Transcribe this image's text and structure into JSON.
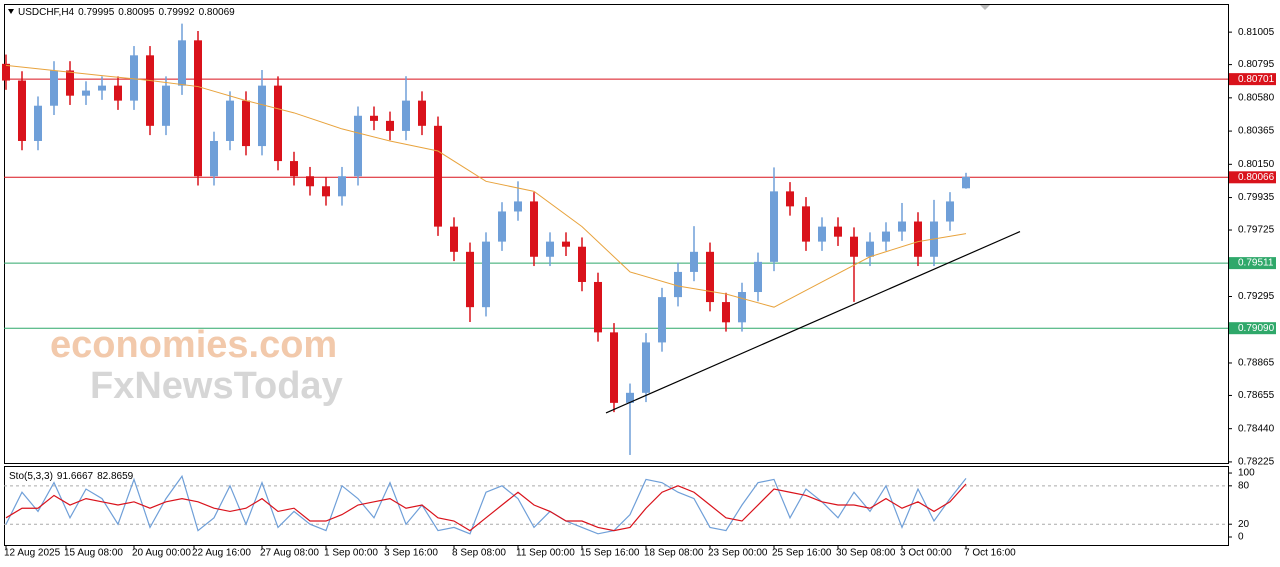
{
  "chart_data": {
    "type": "candlestick",
    "symbol": "USDCHF,H4",
    "watermark": [
      "economies.com",
      "FxNewsToday"
    ],
    "xlim": [
      -0.5,
      305.5
    ],
    "xticks": [
      {
        "value": 0,
        "label": "12 Aug 2025"
      },
      {
        "value": 15,
        "label": "15 Aug 08:00"
      },
      {
        "value": 32,
        "label": "20 Aug 00:00"
      },
      {
        "value": 47,
        "label": "22 Aug 16:00"
      },
      {
        "value": 64,
        "label": "27 Aug 08:00"
      },
      {
        "value": 80,
        "label": "1 Sep 00:00"
      },
      {
        "value": 95,
        "label": "3 Sep 16:00"
      },
      {
        "value": 112,
        "label": "8 Sep 08:00"
      },
      {
        "value": 128,
        "label": "11 Sep 00:00"
      },
      {
        "value": 144,
        "label": "15 Sep 16:00"
      },
      {
        "value": 160,
        "label": "18 Sep 08:00"
      },
      {
        "value": 176,
        "label": "23 Sep 00:00"
      },
      {
        "value": 192,
        "label": "25 Sep 16:00"
      },
      {
        "value": 208,
        "label": "30 Sep 08:00"
      },
      {
        "value": 224,
        "label": "3 Oct 00:00"
      },
      {
        "value": 240,
        "label": "7 Oct 16:00"
      }
    ],
    "ylim": [
      0.78218,
      0.81187
    ],
    "yticks": [
      0.81005,
      0.80795,
      {
        "value": 0.8058,
        "label": "0.80580"
      },
      0.80365,
      {
        "value": 0.8015,
        "label": "0.80150"
      },
      0.79935,
      0.79725,
      0.79295,
      0.78865,
      0.78655,
      {
        "value": 0.7844,
        "label": "0.78440"
      },
      0.78225
    ],
    "up_color": "#6f9fd8",
    "down_color": "#d9121b",
    "x": [
      0,
      4,
      8,
      12,
      16,
      20,
      24,
      28,
      32,
      36,
      40,
      44,
      48,
      52,
      56,
      60,
      64,
      68,
      72,
      76,
      80,
      84,
      88,
      92,
      96,
      100,
      104,
      108,
      112,
      116,
      120,
      124,
      128,
      132,
      136,
      140,
      144,
      148,
      152,
      156,
      160,
      164,
      168,
      172,
      176,
      180,
      184,
      188,
      192,
      196,
      200,
      204,
      208,
      212,
      216,
      220,
      224,
      228,
      232,
      236,
      240
    ],
    "open": [
      0.808,
      0.80692,
      0.80301,
      0.80529,
      0.80757,
      0.80594,
      0.80627,
      0.80659,
      0.80562,
      0.80855,
      0.80399,
      0.80659,
      0.80952,
      0.80073,
      0.80301,
      0.80562,
      0.80268,
      0.80659,
      0.80171,
      0.80073,
      0.80008,
      0.79943,
      0.80073,
      0.80464,
      0.80431,
      0.80366,
      0.80562,
      0.80399,
      0.79747,
      0.79584,
      0.79226,
      0.7965,
      0.79845,
      0.7991,
      0.79552,
      0.7965,
      0.79617,
      0.79389,
      0.79063,
      0.78607,
      0.78672,
      0.78998,
      0.79291,
      0.79454,
      0.79584,
      0.79259,
      0.79128,
      0.79324,
      0.79519,
      0.79975,
      0.79878,
      0.7965,
      0.79747,
      0.79682,
      0.79552,
      0.7965,
      0.79715,
      0.7978,
      0.79552,
      0.7978,
      0.79995
    ],
    "high": [
      0.8086,
      0.80752,
      0.80589,
      0.80817,
      0.80817,
      0.80687,
      0.80719,
      0.80719,
      0.80915,
      0.80915,
      0.80719,
      0.8106,
      0.81012,
      0.80361,
      0.80622,
      0.80622,
      0.8076,
      0.80719,
      0.80231,
      0.80133,
      0.80068,
      0.80133,
      0.80524,
      0.80524,
      0.80491,
      0.8072,
      0.80622,
      0.80459,
      0.79807,
      0.79644,
      0.7971,
      0.79905,
      0.8004,
      0.7997,
      0.7971,
      0.7971,
      0.79677,
      0.79449,
      0.79123,
      0.78732,
      0.79058,
      0.79351,
      0.79514,
      0.7975,
      0.79644,
      0.79319,
      0.79384,
      0.79579,
      0.8013,
      0.80035,
      0.79938,
      0.79807,
      0.79807,
      0.79742,
      0.7971,
      0.79775,
      0.799,
      0.7984,
      0.7992,
      0.7997,
      0.80095
    ],
    "low": [
      0.80632,
      0.80241,
      0.80241,
      0.80469,
      0.80534,
      0.80534,
      0.80567,
      0.80502,
      0.80502,
      0.80339,
      0.80339,
      0.80599,
      0.80013,
      0.80013,
      0.80241,
      0.80208,
      0.80208,
      0.80111,
      0.80013,
      0.79948,
      0.79883,
      0.79883,
      0.80013,
      0.80371,
      0.80306,
      0.80306,
      0.80339,
      0.79687,
      0.79524,
      0.7913,
      0.79166,
      0.7959,
      0.79785,
      0.79492,
      0.79492,
      0.79557,
      0.79329,
      0.79003,
      0.78547,
      0.7827,
      0.78612,
      0.78938,
      0.79231,
      0.79394,
      0.79199,
      0.79068,
      0.79068,
      0.79264,
      0.79459,
      0.79818,
      0.7959,
      0.7959,
      0.79622,
      0.7926,
      0.79492,
      0.7959,
      0.79655,
      0.79492,
      0.79492,
      0.7972,
      0.79992
    ],
    "close": [
      0.80692,
      0.80301,
      0.80529,
      0.80757,
      0.80594,
      0.80627,
      0.80659,
      0.80562,
      0.80855,
      0.80399,
      0.80659,
      0.80952,
      0.80073,
      0.80301,
      0.80562,
      0.80268,
      0.80659,
      0.80171,
      0.80073,
      0.80008,
      0.79943,
      0.80073,
      0.80464,
      0.80431,
      0.80366,
      0.80562,
      0.80399,
      0.79747,
      0.79584,
      0.79226,
      0.7965,
      0.79845,
      0.7991,
      0.79552,
      0.7965,
      0.79617,
      0.79389,
      0.79063,
      0.78607,
      0.78672,
      0.78998,
      0.79291,
      0.79454,
      0.79584,
      0.79259,
      0.79128,
      0.79324,
      0.79519,
      0.79975,
      0.79878,
      0.7965,
      0.79747,
      0.79682,
      0.79552,
      0.7965,
      0.79715,
      0.7978,
      0.79552,
      0.7978,
      0.7991,
      0.80069
    ],
    "ma": {
      "color": "#e8a33d",
      "x": [
        0,
        12,
        24,
        36,
        48,
        60,
        72,
        84,
        96,
        108,
        120,
        132,
        144,
        156,
        168,
        180,
        192,
        204,
        216,
        228,
        240
      ],
      "values": [
        0.8079,
        0.80757,
        0.80724,
        0.80692,
        0.80653,
        0.80562,
        0.80483,
        0.80379,
        0.80301,
        0.80236,
        0.8004,
        0.79975,
        0.79747,
        0.79454,
        0.79363,
        0.79311,
        0.79226,
        0.79389,
        0.79552,
        0.7965,
        0.79702
      ]
    },
    "trendline": {
      "color": "#000000",
      "x": [
        150,
        253.5
      ],
      "values": [
        0.78542,
        0.79715
      ]
    },
    "levels": [
      {
        "value": 0.80701,
        "label": "0.80701",
        "color": "#d9121b"
      },
      {
        "value": 0.80066,
        "label": "0.80066",
        "color": "#d9121b"
      },
      {
        "value": 0.79511,
        "label": "0.79511",
        "color": "#2fa86a"
      },
      {
        "value": 0.7909,
        "label": "0.79090",
        "color": "#2fa86a"
      }
    ],
    "stochastic": {
      "label": "Sto(5,3,3)",
      "ylim": [
        -12.5,
        111
      ],
      "yticks": [
        100,
        80,
        20,
        0
      ],
      "levels": [
        80,
        20
      ],
      "series": [
        {
          "color": "#6f9fd8",
          "values": [
            20,
            70,
            40,
            85,
            30,
            75,
            60,
            20,
            90,
            15,
            60,
            95,
            10,
            30,
            80,
            20,
            85,
            15,
            40,
            20,
            10,
            80,
            60,
            30,
            85,
            20,
            50,
            10,
            15,
            5,
            70,
            80,
            60,
            15,
            40,
            25,
            15,
            5,
            10,
            35,
            90,
            85,
            70,
            60,
            15,
            10,
            50,
            85,
            90,
            30,
            75,
            55,
            30,
            70,
            40,
            80,
            15,
            75,
            25,
            60,
            91.6667
          ]
        },
        {
          "color": "#d9121b",
          "values": [
            30,
            45,
            45,
            65,
            50,
            60,
            55,
            50,
            55,
            45,
            55,
            60,
            55,
            45,
            40,
            45,
            60,
            40,
            45,
            25,
            25,
            35,
            50,
            55,
            60,
            45,
            50,
            30,
            25,
            10,
            30,
            50,
            70,
            50,
            40,
            25,
            25,
            15,
            10,
            15,
            45,
            70,
            80,
            70,
            50,
            30,
            25,
            50,
            75,
            70,
            65,
            55,
            50,
            50,
            45,
            60,
            45,
            55,
            40,
            55,
            82.8659
          ]
        }
      ]
    }
  }
}
